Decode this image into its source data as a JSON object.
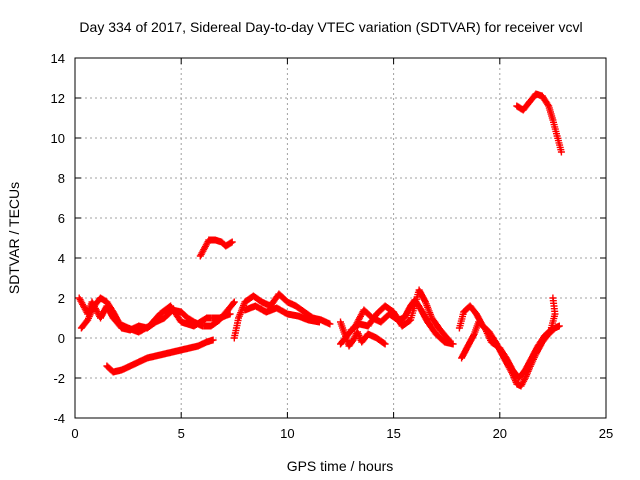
{
  "chart_data": {
    "type": "scatter",
    "title": "Day 334 of 2017, Sidereal Day-to-day VTEC variation (SDTVAR) for receiver vcvl",
    "xlabel": "GPS time / hours",
    "ylabel": "SDTVAR / TECUs",
    "xlim": [
      0,
      25
    ],
    "ylim": [
      -4,
      14
    ],
    "xticks": [
      0,
      5,
      10,
      15,
      20,
      25
    ],
    "yticks": [
      -4,
      -2,
      0,
      2,
      4,
      6,
      8,
      10,
      12,
      14
    ],
    "grid": true,
    "marker": "plus",
    "series": [
      {
        "name": "pass-a",
        "color": "#ff0000",
        "points": [
          [
            0.2,
            2.0
          ],
          [
            0.4,
            1.6
          ],
          [
            0.6,
            1.2
          ],
          [
            0.8,
            1.8
          ],
          [
            1.0,
            1.4
          ],
          [
            1.2,
            1.0
          ],
          [
            1.5,
            1.6
          ],
          [
            1.8,
            1.0
          ],
          [
            2.2,
            0.5
          ],
          [
            2.6,
            0.4
          ],
          [
            3.0,
            0.6
          ],
          [
            3.4,
            0.5
          ],
          [
            3.8,
            0.8
          ],
          [
            4.2,
            1.0
          ],
          [
            4.6,
            1.4
          ],
          [
            5.0,
            1.3
          ],
          [
            5.3,
            1.0
          ],
          [
            5.6,
            0.8
          ],
          [
            6.0,
            0.6
          ],
          [
            6.4,
            0.6
          ],
          [
            6.8,
            0.9
          ],
          [
            7.2,
            1.4
          ],
          [
            7.5,
            1.8
          ]
        ]
      },
      {
        "name": "pass-b",
        "color": "#ff0000",
        "points": [
          [
            0.3,
            0.5
          ],
          [
            0.6,
            0.9
          ],
          [
            0.9,
            1.6
          ],
          [
            1.2,
            2.0
          ],
          [
            1.5,
            1.8
          ],
          [
            1.8,
            1.3
          ],
          [
            2.1,
            0.7
          ],
          [
            2.5,
            0.5
          ],
          [
            3.0,
            0.3
          ],
          [
            3.5,
            0.6
          ],
          [
            4.0,
            1.2
          ],
          [
            4.5,
            1.6
          ],
          [
            5.0,
            0.8
          ],
          [
            5.6,
            0.6
          ],
          [
            6.2,
            1.0
          ],
          [
            6.8,
            1.0
          ],
          [
            7.3,
            1.2
          ]
        ]
      },
      {
        "name": "pass-c",
        "color": "#ff0000",
        "points": [
          [
            1.5,
            -1.4
          ],
          [
            1.8,
            -1.7
          ],
          [
            2.2,
            -1.6
          ],
          [
            2.6,
            -1.4
          ],
          [
            3.0,
            -1.2
          ],
          [
            3.4,
            -1.0
          ],
          [
            3.8,
            -0.9
          ],
          [
            4.2,
            -0.8
          ],
          [
            4.6,
            -0.7
          ],
          [
            5.0,
            -0.6
          ],
          [
            5.4,
            -0.5
          ],
          [
            5.8,
            -0.4
          ],
          [
            6.2,
            -0.2
          ],
          [
            6.5,
            -0.1
          ]
        ]
      },
      {
        "name": "pass-d",
        "color": "#ff0000",
        "points": [
          [
            5.9,
            4.1
          ],
          [
            6.1,
            4.5
          ],
          [
            6.3,
            4.9
          ],
          [
            6.6,
            4.9
          ],
          [
            6.9,
            4.8
          ],
          [
            7.1,
            4.6
          ],
          [
            7.4,
            4.8
          ]
        ]
      },
      {
        "name": "pass-e",
        "color": "#ff0000",
        "points": [
          [
            7.5,
            0.0
          ],
          [
            7.7,
            1.0
          ],
          [
            8.0,
            1.8
          ],
          [
            8.4,
            2.1
          ],
          [
            8.8,
            1.8
          ],
          [
            9.2,
            1.6
          ],
          [
            9.6,
            2.2
          ],
          [
            10.0,
            1.8
          ],
          [
            10.4,
            1.6
          ],
          [
            10.8,
            1.3
          ],
          [
            11.2,
            1.0
          ],
          [
            11.6,
            0.9
          ],
          [
            12.0,
            0.7
          ]
        ]
      },
      {
        "name": "pass-f",
        "color": "#ff0000",
        "points": [
          [
            8.0,
            1.4
          ],
          [
            8.5,
            1.6
          ],
          [
            9.0,
            1.3
          ],
          [
            9.5,
            1.5
          ],
          [
            10.0,
            1.2
          ],
          [
            10.5,
            1.1
          ],
          [
            11.0,
            0.9
          ],
          [
            11.5,
            0.8
          ]
        ]
      },
      {
        "name": "pass-g",
        "color": "#ff0000",
        "points": [
          [
            12.5,
            0.8
          ],
          [
            12.7,
            0.2
          ],
          [
            12.9,
            -0.4
          ],
          [
            13.1,
            -0.1
          ],
          [
            13.3,
            0.3
          ],
          [
            13.5,
            -0.2
          ],
          [
            13.8,
            0.2
          ],
          [
            14.2,
            0.0
          ],
          [
            14.6,
            -0.3
          ]
        ]
      },
      {
        "name": "pass-h",
        "color": "#ff0000",
        "points": [
          [
            12.5,
            -0.3
          ],
          [
            12.8,
            0.1
          ],
          [
            13.2,
            0.6
          ],
          [
            13.6,
            1.4
          ],
          [
            14.0,
            1.0
          ],
          [
            14.4,
            0.8
          ],
          [
            14.8,
            1.2
          ],
          [
            15.2,
            0.9
          ],
          [
            15.5,
            1.0
          ],
          [
            15.8,
            1.6
          ],
          [
            16.0,
            1.9
          ],
          [
            16.3,
            1.4
          ],
          [
            16.6,
            0.8
          ],
          [
            17.0,
            0.2
          ],
          [
            17.4,
            -0.2
          ],
          [
            17.8,
            -0.3
          ]
        ]
      },
      {
        "name": "pass-i",
        "color": "#ff0000",
        "points": [
          [
            13.0,
            0.4
          ],
          [
            13.4,
            0.7
          ],
          [
            13.8,
            0.6
          ],
          [
            14.2,
            1.2
          ],
          [
            14.6,
            1.6
          ],
          [
            15.0,
            1.3
          ],
          [
            15.4,
            0.6
          ],
          [
            15.8,
            0.9
          ],
          [
            16.2,
            2.4
          ],
          [
            16.5,
            1.8
          ],
          [
            16.8,
            1.0
          ],
          [
            17.2,
            0.4
          ],
          [
            17.6,
            -0.1
          ]
        ]
      },
      {
        "name": "pass-j",
        "color": "#ff0000",
        "points": [
          [
            18.1,
            0.5
          ],
          [
            18.3,
            1.3
          ],
          [
            18.6,
            1.6
          ],
          [
            18.9,
            1.2
          ],
          [
            19.2,
            0.6
          ],
          [
            19.5,
            0.3
          ],
          [
            19.8,
            -0.2
          ],
          [
            20.1,
            -0.8
          ],
          [
            20.4,
            -1.4
          ],
          [
            20.6,
            -1.8
          ],
          [
            20.8,
            -2.3
          ],
          [
            21.0,
            -2.4
          ],
          [
            21.2,
            -2.0
          ],
          [
            21.4,
            -1.5
          ],
          [
            21.7,
            -0.8
          ],
          [
            22.0,
            -0.2
          ],
          [
            22.3,
            0.2
          ],
          [
            22.6,
            0.5
          ],
          [
            22.8,
            0.6
          ]
        ]
      },
      {
        "name": "pass-k",
        "color": "#ff0000",
        "points": [
          [
            18.2,
            -1.0
          ],
          [
            18.5,
            -0.4
          ],
          [
            18.8,
            0.2
          ],
          [
            19.0,
            0.8
          ],
          [
            19.3,
            0.5
          ],
          [
            19.6,
            -0.2
          ],
          [
            20.0,
            -0.5
          ],
          [
            20.3,
            -1.0
          ],
          [
            20.6,
            -1.6
          ],
          [
            20.9,
            -2.0
          ],
          [
            21.2,
            -1.6
          ],
          [
            21.5,
            -1.0
          ],
          [
            21.8,
            -0.4
          ],
          [
            22.1,
            0.1
          ],
          [
            22.4,
            0.4
          ],
          [
            22.6,
            1.2
          ],
          [
            22.5,
            2.0
          ]
        ]
      },
      {
        "name": "pass-l",
        "color": "#ff0000",
        "points": [
          [
            20.8,
            11.6
          ],
          [
            21.1,
            11.4
          ],
          [
            21.4,
            11.8
          ],
          [
            21.7,
            12.2
          ],
          [
            22.0,
            12.1
          ],
          [
            22.3,
            11.6
          ],
          [
            22.5,
            10.9
          ],
          [
            22.7,
            10.1
          ],
          [
            22.9,
            9.3
          ]
        ]
      }
    ]
  }
}
